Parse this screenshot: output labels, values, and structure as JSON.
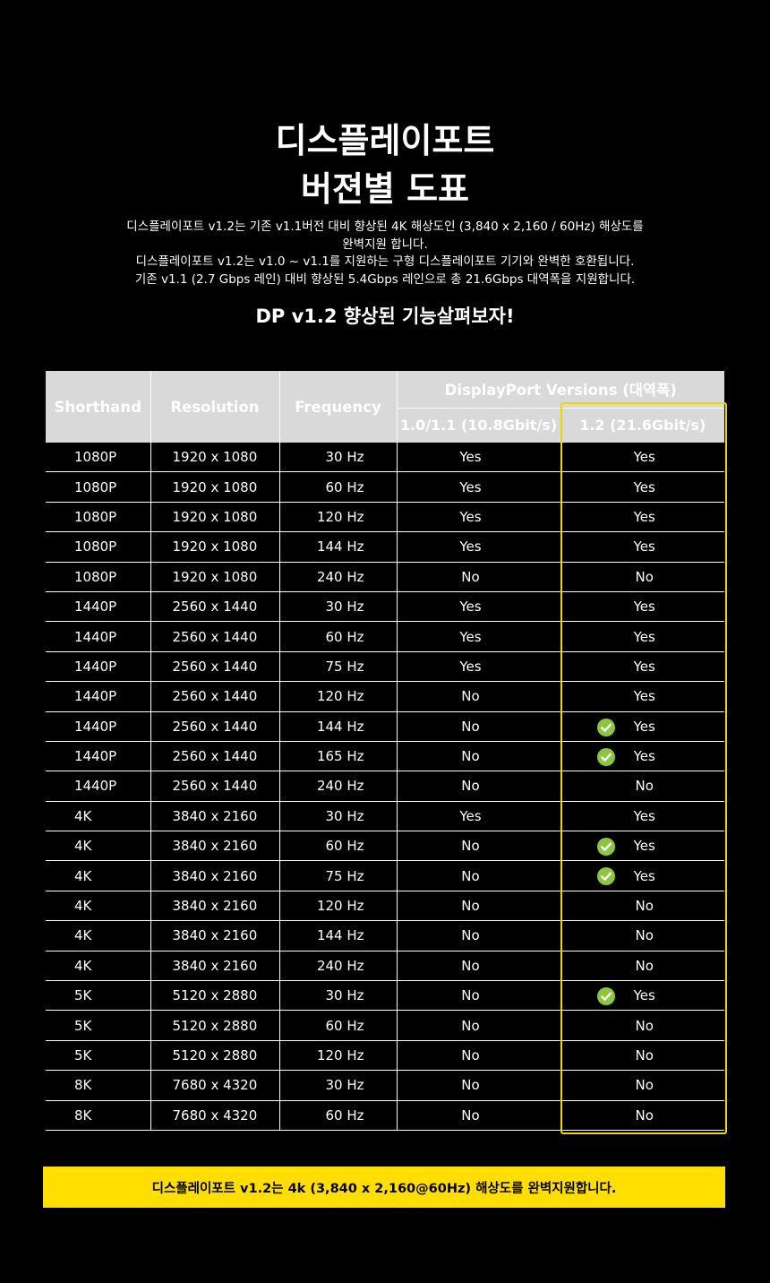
{
  "title": {
    "line1": "디스플레이포트",
    "line2": "버젼별 도표"
  },
  "intro": [
    "디스플레이포트 v1.2는 기존 v1.1버전 대비 향상된 4K 해상도인 (3,840 x 2,160 / 60Hz) 해상도를",
    "완벽지원 합니다.",
    "디스플레이포트 v1.2는 v1.0 ~ v1.1를 지원하는 구형 디스플레이포트 기기와 완벽한 호환됩니다.",
    "기존 v1.1 (2.7 Gbps 레인) 대비 향상된 5.4Gbps 레인으로 총 21.6Gbps 대역폭을 지원합니다."
  ],
  "subtitle": "DP v1.2 향상된 기능살펴보자!",
  "table": {
    "headers": {
      "shorthand": "Shorthand",
      "resolution": "Resolution",
      "frequency": "Frequency",
      "versions": "DisplayPort Versions (대역폭)",
      "v1": "1.0/1.1 (10.8Gbit/s)",
      "v2": "1.2 (21.6Gbit/s)"
    },
    "rows": [
      {
        "shorthand": "1080P",
        "resolution": "1920 x 1080",
        "frequency": "30 Hz",
        "v1": "Yes",
        "v2": "Yes",
        "check": false
      },
      {
        "shorthand": "1080P",
        "resolution": "1920 x 1080",
        "frequency": "60 Hz",
        "v1": "Yes",
        "v2": "Yes",
        "check": false
      },
      {
        "shorthand": "1080P",
        "resolution": "1920 x 1080",
        "frequency": "120 Hz",
        "v1": "Yes",
        "v2": "Yes",
        "check": false
      },
      {
        "shorthand": "1080P",
        "resolution": "1920 x 1080",
        "frequency": "144 Hz",
        "v1": "Yes",
        "v2": "Yes",
        "check": false
      },
      {
        "shorthand": "1080P",
        "resolution": "1920 x 1080",
        "frequency": "240 Hz",
        "v1": "No",
        "v2": "No",
        "check": false
      },
      {
        "shorthand": "1440P",
        "resolution": "2560 x 1440",
        "frequency": "30 Hz",
        "v1": "Yes",
        "v2": "Yes",
        "check": false
      },
      {
        "shorthand": "1440P",
        "resolution": "2560 x 1440",
        "frequency": "60 Hz",
        "v1": "Yes",
        "v2": "Yes",
        "check": false
      },
      {
        "shorthand": "1440P",
        "resolution": "2560 x 1440",
        "frequency": "75 Hz",
        "v1": "Yes",
        "v2": "Yes",
        "check": false
      },
      {
        "shorthand": "1440P",
        "resolution": "2560 x 1440",
        "frequency": "120 Hz",
        "v1": "No",
        "v2": "Yes",
        "check": false
      },
      {
        "shorthand": "1440P",
        "resolution": "2560 x 1440",
        "frequency": "144 Hz",
        "v1": "No",
        "v2": "Yes",
        "check": true
      },
      {
        "shorthand": "1440P",
        "resolution": "2560 x 1440",
        "frequency": "165 Hz",
        "v1": "No",
        "v2": "Yes",
        "check": true
      },
      {
        "shorthand": "1440P",
        "resolution": "2560 x 1440",
        "frequency": "240 Hz",
        "v1": "No",
        "v2": "No",
        "check": false
      },
      {
        "shorthand": "4K",
        "resolution": "3840 x 2160",
        "frequency": "30 Hz",
        "v1": "Yes",
        "v2": "Yes",
        "check": false
      },
      {
        "shorthand": "4K",
        "resolution": "3840 x 2160",
        "frequency": "60 Hz",
        "v1": "No",
        "v2": "Yes",
        "check": true
      },
      {
        "shorthand": "4K",
        "resolution": "3840 x 2160",
        "frequency": "75 Hz",
        "v1": "No",
        "v2": "Yes",
        "check": true
      },
      {
        "shorthand": "4K",
        "resolution": "3840 x 2160",
        "frequency": "120 Hz",
        "v1": "No",
        "v2": "No",
        "check": false
      },
      {
        "shorthand": "4K",
        "resolution": "3840 x 2160",
        "frequency": "144 Hz",
        "v1": "No",
        "v2": "No",
        "check": false
      },
      {
        "shorthand": "4K",
        "resolution": "3840 x 2160",
        "frequency": "240 Hz",
        "v1": "No",
        "v2": "No",
        "check": false
      },
      {
        "shorthand": "5K",
        "resolution": "5120 x 2880",
        "frequency": "30 Hz",
        "v1": "No",
        "v2": "Yes",
        "check": true
      },
      {
        "shorthand": "5K",
        "resolution": "5120 x 2880",
        "frequency": "60 Hz",
        "v1": "No",
        "v2": "No",
        "check": false
      },
      {
        "shorthand": "5K",
        "resolution": "5120 x 2880",
        "frequency": "120 Hz",
        "v1": "No",
        "v2": "No",
        "check": false
      },
      {
        "shorthand": "8K",
        "resolution": "7680 x 4320",
        "frequency": "30 Hz",
        "v1": "No",
        "v2": "No",
        "check": false
      },
      {
        "shorthand": "8K",
        "resolution": "7680 x 4320",
        "frequency": "60 Hz",
        "v1": "No",
        "v2": "No",
        "check": false
      }
    ]
  },
  "banner": "디스플레이포트 v1.2는 4k (3,840 x 2,160@60Hz) 해상도를 완벽지원합니다.",
  "colors": {
    "background": "#000000",
    "header_bg": "#d9d9d9",
    "highlight": "#f2d600",
    "banner_bg": "#ffde00",
    "check": "#8cc63f"
  }
}
